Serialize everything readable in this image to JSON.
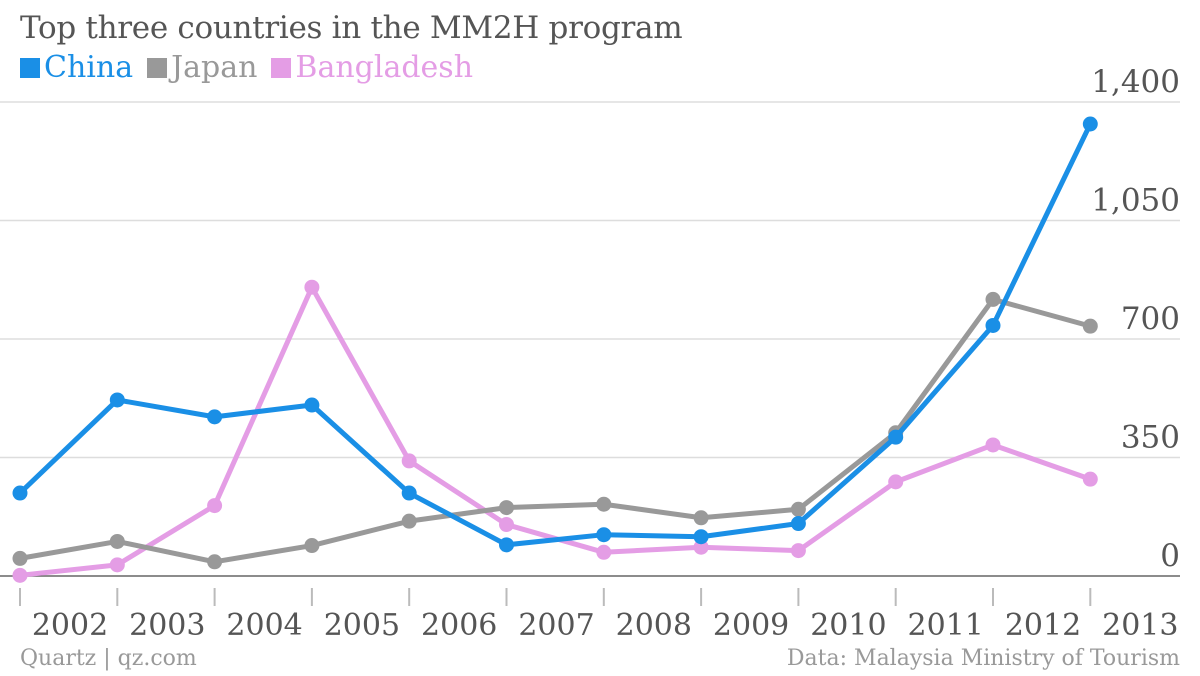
{
  "chart_data": {
    "type": "line",
    "title": "Top three countries in the MM2H program",
    "xlabel": "",
    "ylabel": "",
    "categories": [
      "2002",
      "2003",
      "2004",
      "2005",
      "2006",
      "2007",
      "2008",
      "2009",
      "2010",
      "2011",
      "2012",
      "2013"
    ],
    "ylim": [
      0,
      1400
    ],
    "yticks": [
      0,
      350,
      700,
      1050,
      1400
    ],
    "ytick_labels": [
      "0",
      "350",
      "700",
      "1,050",
      "1,400"
    ],
    "grid": true,
    "legend_position": "top-left",
    "series": [
      {
        "name": "China",
        "color": "#1a8fe6",
        "values": [
          245,
          520,
          470,
          505,
          245,
          92,
          122,
          116,
          155,
          410,
          740,
          1335
        ]
      },
      {
        "name": "Japan",
        "color": "#999999",
        "values": [
          52,
          102,
          42,
          90,
          162,
          202,
          212,
          172,
          197,
          423,
          817,
          738
        ]
      },
      {
        "name": "Bangladesh",
        "color": "#e49de5",
        "values": [
          2,
          33,
          208,
          853,
          340,
          152,
          70,
          85,
          75,
          278,
          387,
          286
        ]
      }
    ]
  },
  "footer": {
    "source_left": "Quartz | qz.com",
    "source_right": "Data: Malaysia Ministry of Tourism"
  }
}
